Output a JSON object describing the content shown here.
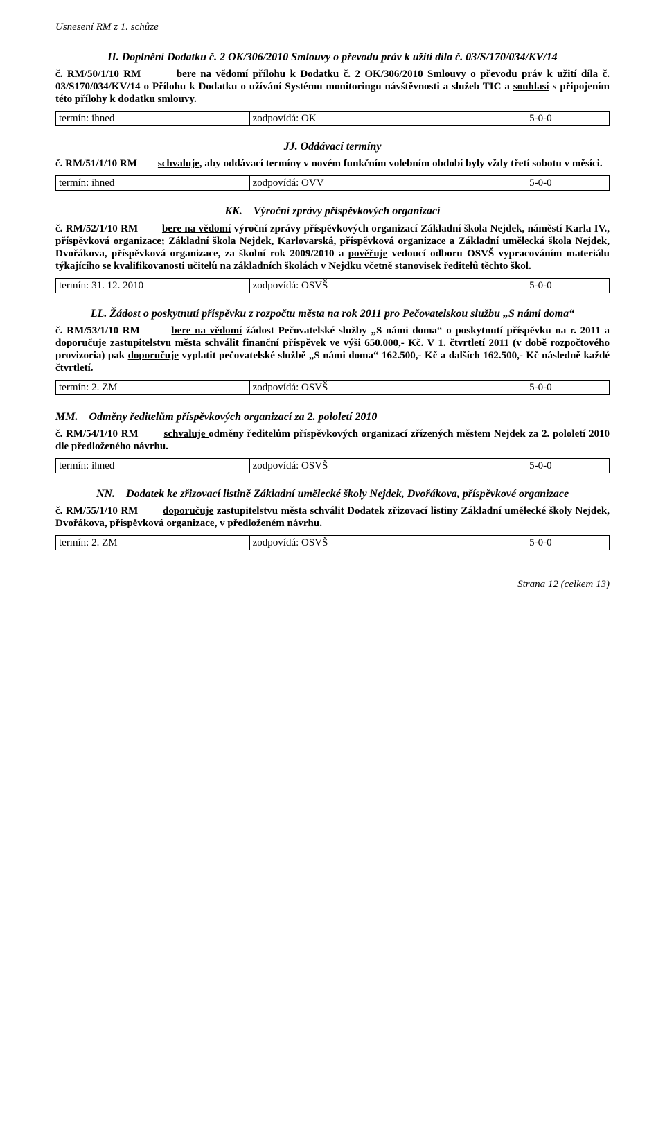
{
  "header": "Usnesení RM z 1. schůze",
  "sections": [
    {
      "heading_mode": "center",
      "heading": "II. Doplnění Dodatku č. 2 OK/306/2010 Smlouvy o převodu práv k užití díla č. 03/S/170/034/KV/14",
      "body_html": "<span class='bold'>č. RM/50/1/10 RM</span>&nbsp;&nbsp;&nbsp;&nbsp;&nbsp;&nbsp;&nbsp;&nbsp;<span class='bold ul'>bere na vědomí</span> <span class='bold'>přílohu k Dodatku č. 2 OK/306/2010 Smlouvy o převodu práv k užití díla č. 03/S170/034/KV/14 o Přílohu k Dodatku o užívání Systému monitoringu návštěvnosti a služeb TIC a <span class='ul'>souhlasí</span> s připojením této přílohy k dodatku smlouvy.</span>",
      "row": {
        "c1": "termín: ihned",
        "c2": "zodpovídá: OK",
        "c3": "5-0-0"
      }
    },
    {
      "heading_mode": "center",
      "heading": "JJ. Oddávací termíny",
      "body_html": "<span class='bold'>č. RM/51/1/10 RM</span>&nbsp;&nbsp;&nbsp;&nbsp;&nbsp;&nbsp;&nbsp;&nbsp;<span class='bold ul'>schvaluje</span><span class='bold'>, aby oddávací termíny v novém funkčním volebním období byly vždy třetí sobotu v měsíci.</span>",
      "row": {
        "c1": "termín: ihned",
        "c2": "zodpovídá: OVV",
        "c3": "5-0-0"
      }
    },
    {
      "heading_mode": "center",
      "heading": "KK.&nbsp;&nbsp;&nbsp;&nbsp;Výroční zprávy příspěvkových organizací",
      "body_html": "<span class='bold'>č. RM/52/1/10 RM</span>&nbsp;&nbsp;&nbsp;&nbsp;&nbsp;&nbsp;&nbsp;&nbsp;<span class='bold ul'>bere na vědomí</span> <span class='bold'>výroční zprávy příspěvkových organizací Základní škola Nejdek, náměstí Karla IV., příspěvková organizace; Základní škola Nejdek, Karlovarská, příspěvková organizace a Základní umělecká škola Nejdek, Dvořákova, příspěvková organizace, za školní rok 2009/2010 a <span class='ul'>pověřuje</span> vedoucí odboru OSVŠ vypracováním materiálu týkajícího se kvalifikovanosti učitelů na základních školách v Nejdku včetně stanovisek ředitelů těchto škol.</span>",
      "row": {
        "c1": "termín: 31. 12. 2010",
        "c2": "zodpovídá: OSVŠ",
        "c3": "5-0-0"
      }
    },
    {
      "heading_mode": "center",
      "heading": "LL. Žádost o poskytnutí příspěvku z rozpočtu města na rok 2011 pro Pečovatelskou službu „S námi doma“",
      "body_html": "<span class='bold'>č. RM/53/1/10 RM</span>&nbsp;&nbsp;&nbsp;&nbsp;&nbsp;&nbsp;&nbsp;&nbsp;<span class='bold ul'>bere na vědomí</span> <span class='bold'>žádost Pečovatelské služby „S námi doma“ o poskytnutí příspěvku na r. 2011 a <span class='ul'>doporučuje</span> zastupitelstvu města schválit finanční příspěvek ve výši 650.000,- Kč. V 1. čtvrtletí 2011 (v době rozpočtového provizoria) pak <span class='ul'>doporučuje</span> vyplatit pečovatelské službě „S námi doma“ 162.500,- Kč a dalších 162.500,- Kč následně každé čtvrtletí.</span>",
      "row": {
        "c1": "termín: 2. ZM",
        "c2": "zodpovídá: OSVŠ",
        "c3": "5-0-0"
      }
    },
    {
      "heading_mode": "left",
      "heading": "MM.&nbsp;&nbsp;&nbsp;&nbsp;Odměny ředitelům příspěvkových organizací za 2. pololetí 2010",
      "body_html": "<span class='bold'>č. RM/54/1/10 RM</span>&nbsp;&nbsp;&nbsp;&nbsp;&nbsp;&nbsp;&nbsp;&nbsp;<span class='bold ul'>schvaluje </span><span class='bold'>odměny ředitelům příspěvkových organizací zřízených městem Nejdek za 2. pololetí 2010 dle předloženého návrhu.</span>",
      "row": {
        "c1": "termín: ihned",
        "c2": "zodpovídá: OSVŠ",
        "c3": "5-0-0"
      }
    },
    {
      "heading_mode": "center",
      "heading": "NN.&nbsp;&nbsp;&nbsp;&nbsp;Dodatek ke zřizovací listině Základní umělecké školy Nejdek, Dvořákova, příspěvkové organizace",
      "body_html": "<span class='bold'>č. RM/55/1/10 RM</span>&nbsp;&nbsp;&nbsp;&nbsp;&nbsp;&nbsp;&nbsp;&nbsp;<span class='bold ul'>doporučuje</span> <span class='bold'>zastupitelstvu města schválit Dodatek zřizovací listiny Základní umělecké školy Nejdek, Dvořákova, příspěvková organizace, v předloženém návrhu.</span>",
      "row": {
        "c1": "termín: 2. ZM",
        "c2": "zodpovídá: OSVŠ",
        "c3": "5-0-0"
      }
    }
  ],
  "footer": "Strana 12 (celkem 13)"
}
